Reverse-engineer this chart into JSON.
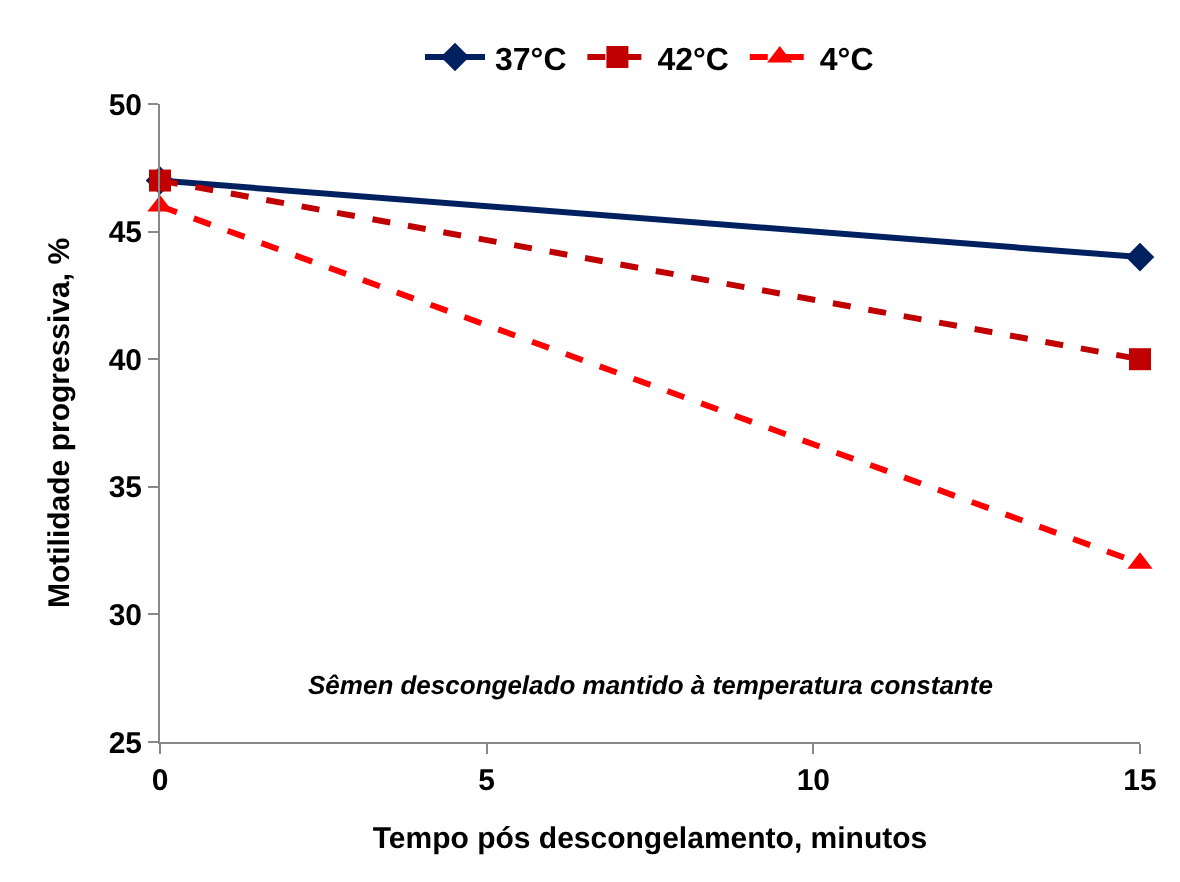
{
  "chart_data": {
    "type": "line",
    "xlabel": "Tempo pós descongelamento, minutos",
    "ylabel": "Motilidade progressiva, %",
    "x": [
      0,
      15
    ],
    "series": [
      {
        "name": "37°C",
        "color": "#002060",
        "values": [
          47,
          44
        ],
        "marker": "diamond",
        "line_style": "solid"
      },
      {
        "name": "42°C",
        "color": "#c00000",
        "values": [
          47,
          40
        ],
        "marker": "square",
        "line_style": "dashed"
      },
      {
        "name": "4°C",
        "color": "#ff0000",
        "values": [
          46,
          32
        ],
        "marker": "triangle",
        "line_style": "dashed"
      }
    ],
    "xlim": [
      0,
      15
    ],
    "xticks": [
      0,
      5,
      10,
      15
    ],
    "ylim": [
      25,
      50
    ],
    "yticks": [
      25,
      30,
      35,
      40,
      45,
      50
    ],
    "legend": "top",
    "annotations": [
      "Sêmen descongelado mantido à temperatura constante"
    ]
  }
}
